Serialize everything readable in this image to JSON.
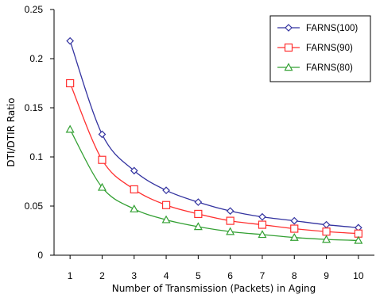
{
  "chart_data": {
    "type": "line",
    "title": "",
    "xlabel": "Number of Transmission (Packets) in Aging",
    "ylabel": "DTI/DTIR Ratio",
    "x": [
      1,
      2,
      3,
      4,
      5,
      6,
      7,
      8,
      9,
      10
    ],
    "xlim": [
      0.5,
      10.5
    ],
    "ylim": [
      0,
      0.25
    ],
    "yticks": [
      "0",
      "0.05",
      "0.1",
      "0.15",
      "0.2",
      "0.25"
    ],
    "xticks": [
      "1",
      "2",
      "3",
      "4",
      "5",
      "6",
      "7",
      "8",
      "9",
      "10"
    ],
    "grid": false,
    "legend_position": "top-right",
    "series": [
      {
        "name": "FARNS(100)",
        "color": "#3333a0",
        "marker": "diamond",
        "values": [
          0.218,
          0.123,
          0.086,
          0.066,
          0.054,
          0.045,
          0.039,
          0.035,
          0.031,
          0.028
        ]
      },
      {
        "name": "FARNS(90)",
        "color": "#ff3030",
        "marker": "square",
        "values": [
          0.175,
          0.097,
          0.067,
          0.051,
          0.042,
          0.035,
          0.031,
          0.027,
          0.024,
          0.022
        ]
      },
      {
        "name": "FARNS(80)",
        "color": "#33a033",
        "marker": "triangle",
        "values": [
          0.128,
          0.069,
          0.047,
          0.036,
          0.029,
          0.024,
          0.021,
          0.018,
          0.016,
          0.015
        ]
      }
    ]
  }
}
